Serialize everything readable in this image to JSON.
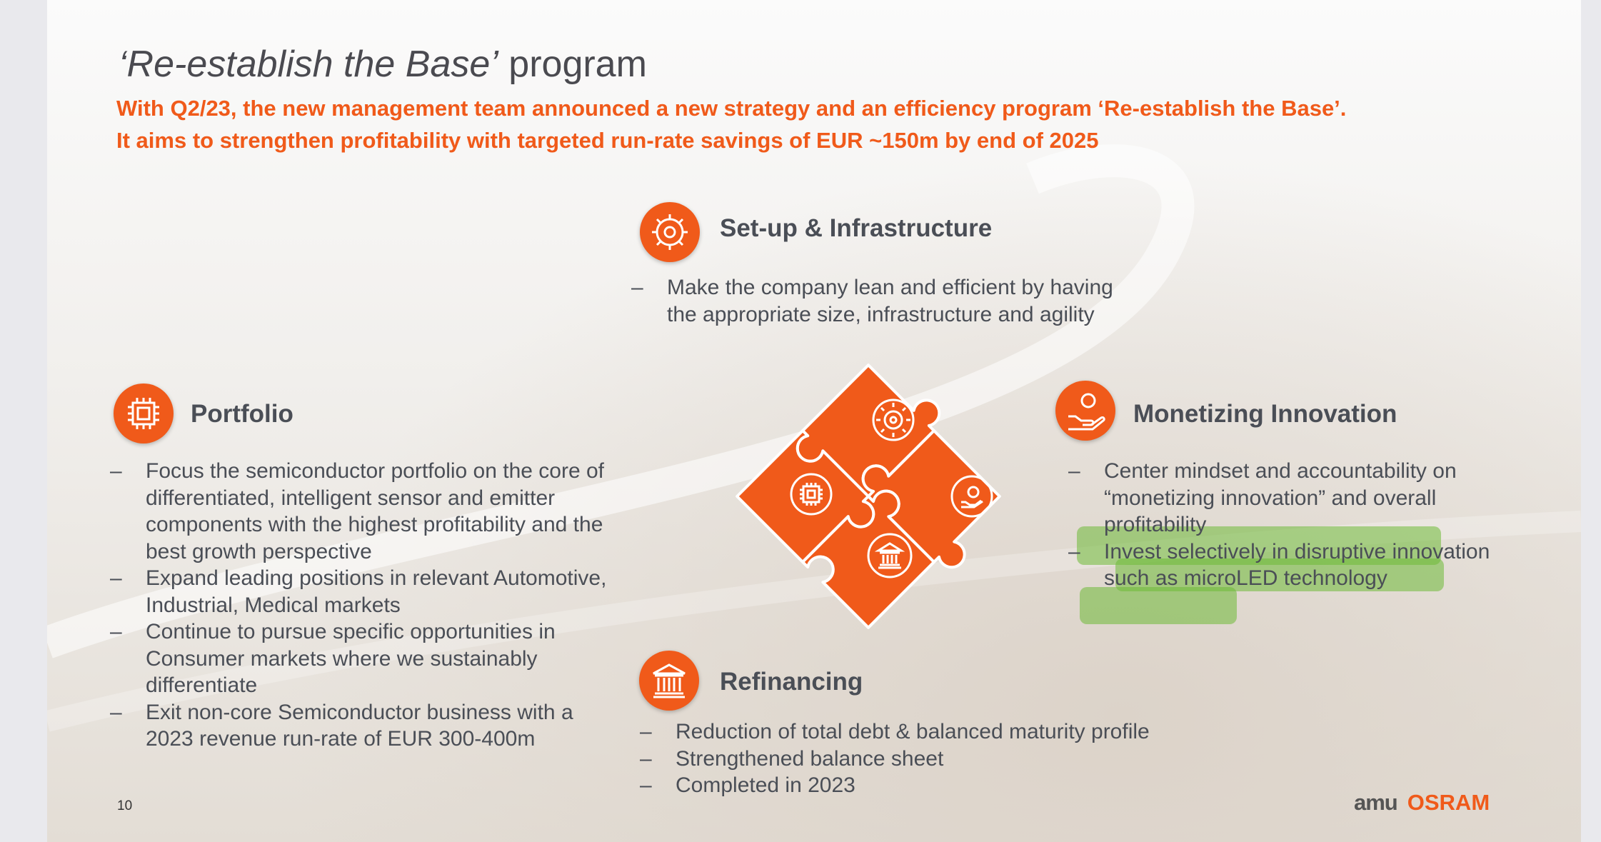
{
  "title": {
    "italic": "‘Re-establish the Base’",
    "rest": " program"
  },
  "subtitle": {
    "line1": "With Q2/23, the new management team announced a new strategy and an efficiency program ‘Re-establish the Base’.",
    "line2": "It aims to strengthen profitability with targeted run-rate savings of EUR ~150m by end of 2025"
  },
  "sections": {
    "setup": {
      "title": "Set-up & Infrastructure",
      "icon": "gear-icon",
      "bullets": [
        "Make the company lean and efficient by having the appropriate size, infrastructure and agility"
      ]
    },
    "portfolio": {
      "title": "Portfolio",
      "icon": "chip-icon",
      "bullets": [
        "Focus the semiconductor portfolio on the core of differentiated, intelligent sensor and emitter components with the highest profitability and the best growth perspective",
        "Expand leading positions in relevant Automotive, Industrial, Medical markets",
        "Continue to pursue specific opportunities in Consumer markets where we sustainably differentiate",
        "Exit non-core Semiconductor business with a 2023 revenue run-rate of EUR 300-400m"
      ]
    },
    "monetizing": {
      "title": "Monetizing Innovation",
      "icon": "hand-coin-icon",
      "bullets": [
        "Center mindset and accountability on “monetizing innovation” and overall profitability",
        "Invest selectively in disruptive innovation such as microLED technology"
      ]
    },
    "refinancing": {
      "title": "Refinancing",
      "icon": "bank-icon",
      "bullets": [
        "Reduction of total debt & balanced maturity profile",
        "Strengthened balance sheet",
        "Completed in 2023"
      ]
    }
  },
  "dash": "–",
  "page_number": "10",
  "logo": {
    "ams": "amu",
    "osram": "OSRAM"
  },
  "colors": {
    "accent": "#f05a1a",
    "text": "#4a4e56",
    "highlight": "#6eb937"
  }
}
